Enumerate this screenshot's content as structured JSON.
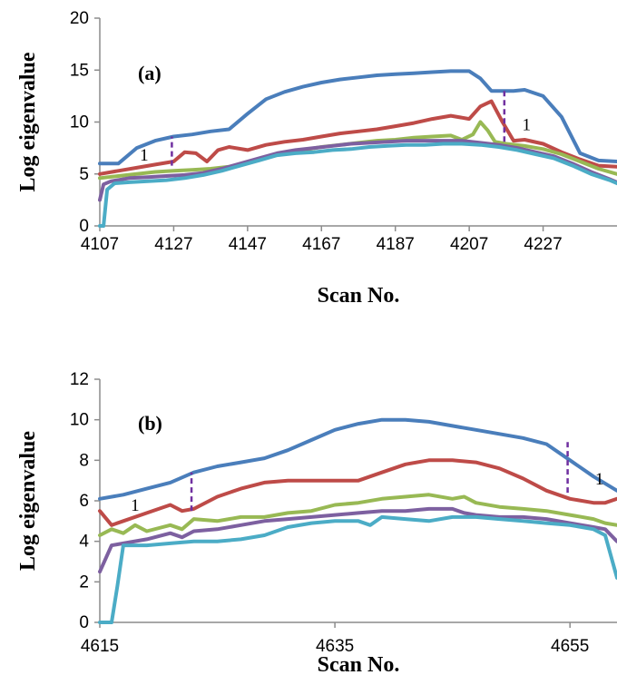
{
  "chart_data": [
    {
      "type": "line",
      "panel_label": "(a)",
      "xlabel": "Scan No.",
      "ylabel": "Log eigenvalue",
      "xlim": [
        4107,
        4247
      ],
      "ylim": [
        0,
        20
      ],
      "x_ticks": [
        4107,
        4127,
        4147,
        4167,
        4187,
        4207,
        4227
      ],
      "y_ticks": [
        0,
        5,
        10,
        15,
        20
      ],
      "grid": false,
      "series": [
        {
          "color": "#4a7ebb",
          "x": [
            4107,
            4112,
            4117,
            4122,
            4127,
            4132,
            4137,
            4142,
            4147,
            4152,
            4157,
            4162,
            4167,
            4172,
            4177,
            4182,
            4187,
            4192,
            4197,
            4202,
            4207,
            4210,
            4213,
            4216,
            4219,
            4222,
            4227,
            4232,
            4237,
            4242,
            4247
          ],
          "y": [
            6,
            6,
            7.5,
            8.2,
            8.6,
            8.8,
            9.1,
            9.3,
            10.8,
            12.2,
            12.9,
            13.4,
            13.8,
            14.1,
            14.3,
            14.5,
            14.6,
            14.7,
            14.8,
            14.9,
            14.9,
            14.2,
            13,
            13,
            13,
            13.1,
            12.5,
            10.5,
            7,
            6.3,
            6.2
          ]
        },
        {
          "color": "#be4b48",
          "x": [
            4107,
            4112,
            4117,
            4122,
            4127,
            4130,
            4133,
            4136,
            4139,
            4142,
            4147,
            4152,
            4157,
            4162,
            4167,
            4172,
            4177,
            4182,
            4187,
            4192,
            4197,
            4202,
            4207,
            4210,
            4213,
            4216,
            4219,
            4222,
            4227,
            4232,
            4237,
            4242,
            4247
          ],
          "y": [
            5,
            5.3,
            5.6,
            5.9,
            6.2,
            7.1,
            7,
            6.2,
            7.3,
            7.6,
            7.3,
            7.8,
            8.1,
            8.3,
            8.6,
            8.9,
            9.1,
            9.3,
            9.6,
            9.9,
            10.3,
            10.6,
            10.3,
            11.5,
            12,
            10,
            8.2,
            8.3,
            7.9,
            7.1,
            6.4,
            5.8,
            5.7
          ]
        },
        {
          "color": "#98b954",
          "x": [
            4107,
            4112,
            4117,
            4122,
            4127,
            4132,
            4137,
            4142,
            4147,
            4152,
            4157,
            4162,
            4167,
            4172,
            4177,
            4182,
            4187,
            4192,
            4197,
            4202,
            4205,
            4208,
            4210,
            4212,
            4214,
            4217,
            4222,
            4227,
            4232,
            4237,
            4242,
            4247
          ],
          "y": [
            4.6,
            4.8,
            5,
            5.2,
            5.3,
            5.4,
            5.5,
            5.7,
            6.1,
            6.6,
            7,
            7.3,
            7.6,
            7.8,
            8,
            8.2,
            8.3,
            8.5,
            8.6,
            8.7,
            8.3,
            8.8,
            10,
            9.2,
            8.1,
            7.9,
            7.7,
            7.4,
            6.9,
            6.2,
            5.5,
            5
          ]
        },
        {
          "color": "#7d60a0",
          "x": [
            4107,
            4108,
            4110,
            4115,
            4120,
            4125,
            4130,
            4135,
            4140,
            4145,
            4150,
            4155,
            4160,
            4165,
            4170,
            4175,
            4180,
            4185,
            4190,
            4195,
            4200,
            4205,
            4210,
            4215,
            4220,
            4225,
            4230,
            4235,
            4240,
            4245,
            4247
          ],
          "y": [
            2.5,
            4,
            4.3,
            4.6,
            4.7,
            4.8,
            4.9,
            5.1,
            5.5,
            6,
            6.5,
            7,
            7.3,
            7.5,
            7.7,
            7.9,
            8,
            8.1,
            8.2,
            8.2,
            8.2,
            8.2,
            8,
            7.8,
            7.5,
            7.1,
            6.7,
            6,
            5.2,
            4.5,
            4.2
          ]
        },
        {
          "color": "#4bacc6",
          "x": [
            4107,
            4108,
            4109,
            4111,
            4115,
            4120,
            4125,
            4130,
            4135,
            4140,
            4145,
            4150,
            4155,
            4160,
            4165,
            4170,
            4175,
            4180,
            4185,
            4190,
            4195,
            4200,
            4205,
            4210,
            4215,
            4220,
            4225,
            4230,
            4235,
            4240,
            4245,
            4247
          ],
          "y": [
            0,
            0,
            3.5,
            4.1,
            4.2,
            4.3,
            4.4,
            4.6,
            4.9,
            5.3,
            5.8,
            6.3,
            6.8,
            7,
            7.1,
            7.3,
            7.4,
            7.6,
            7.7,
            7.8,
            7.8,
            7.9,
            7.9,
            7.8,
            7.6,
            7.3,
            6.9,
            6.5,
            5.8,
            5,
            4.4,
            4.1
          ]
        }
      ],
      "annotations": [
        {
          "text": "1",
          "x": 4119,
          "y": 6.3
        },
        {
          "text": "1",
          "x": 4222.5,
          "y": 9.2
        }
      ],
      "markers": [
        {
          "x": 4126.5,
          "y_from": 5.8,
          "y_to": 8.6
        },
        {
          "x": 4216.5,
          "y_from": 8.1,
          "y_to": 13
        }
      ]
    },
    {
      "type": "line",
      "panel_label": "(b)",
      "xlabel": "Scan No.",
      "ylabel": "Log eigenvalue",
      "xlim": [
        4615,
        4659
      ],
      "ylim": [
        0,
        12
      ],
      "x_ticks": [
        4615,
        4635,
        4655
      ],
      "y_ticks": [
        0,
        2,
        4,
        6,
        8,
        10,
        12
      ],
      "grid": false,
      "series": [
        {
          "color": "#4a7ebb",
          "x": [
            4615,
            4617,
            4619,
            4621,
            4623,
            4625,
            4627,
            4629,
            4631,
            4633,
            4635,
            4637,
            4639,
            4641,
            4643,
            4645,
            4647,
            4649,
            4651,
            4653,
            4655,
            4657,
            4659
          ],
          "y": [
            6.1,
            6.3,
            6.6,
            6.9,
            7.4,
            7.7,
            7.9,
            8.1,
            8.5,
            9,
            9.5,
            9.8,
            10,
            10,
            9.9,
            9.7,
            9.5,
            9.3,
            9.1,
            8.8,
            8,
            7.2,
            6.5
          ]
        },
        {
          "color": "#be4b48",
          "x": [
            4615,
            4616,
            4617,
            4619,
            4621,
            4622,
            4623,
            4625,
            4627,
            4629,
            4631,
            4633,
            4635,
            4637,
            4639,
            4641,
            4643,
            4645,
            4647,
            4649,
            4651,
            4653,
            4655,
            4657,
            4658,
            4659
          ],
          "y": [
            5.5,
            4.8,
            5,
            5.4,
            5.8,
            5.5,
            5.6,
            6.2,
            6.6,
            6.9,
            7,
            7,
            7,
            7,
            7.4,
            7.8,
            8,
            8,
            7.9,
            7.6,
            7.1,
            6.5,
            6.1,
            5.9,
            5.9,
            6.1
          ]
        },
        {
          "color": "#98b954",
          "x": [
            4615,
            4616,
            4617,
            4618,
            4619,
            4621,
            4622,
            4623,
            4625,
            4627,
            4629,
            4631,
            4633,
            4635,
            4637,
            4639,
            4641,
            4643,
            4645,
            4646,
            4647,
            4649,
            4651,
            4653,
            4655,
            4657,
            4658,
            4659
          ],
          "y": [
            4.3,
            4.6,
            4.4,
            4.8,
            4.5,
            4.8,
            4.6,
            5.1,
            5,
            5.2,
            5.2,
            5.4,
            5.5,
            5.8,
            5.9,
            6.1,
            6.2,
            6.3,
            6.1,
            6.2,
            5.9,
            5.7,
            5.6,
            5.5,
            5.3,
            5.1,
            4.9,
            4.8
          ]
        },
        {
          "color": "#7d60a0",
          "x": [
            4615,
            4616,
            4617,
            4619,
            4621,
            4622,
            4623,
            4625,
            4627,
            4629,
            4631,
            4633,
            4635,
            4637,
            4639,
            4641,
            4643,
            4645,
            4646,
            4647,
            4649,
            4651,
            4653,
            4655,
            4657,
            4658,
            4659
          ],
          "y": [
            2.5,
            3.8,
            3.9,
            4.1,
            4.4,
            4.2,
            4.5,
            4.6,
            4.8,
            5,
            5.1,
            5.2,
            5.3,
            5.4,
            5.5,
            5.5,
            5.6,
            5.6,
            5.4,
            5.3,
            5.2,
            5.2,
            5.1,
            4.9,
            4.7,
            4.6,
            4
          ]
        },
        {
          "color": "#4bacc6",
          "x": [
            4615,
            4616,
            4616.5,
            4617,
            4619,
            4621,
            4623,
            4625,
            4627,
            4629,
            4631,
            4633,
            4635,
            4637,
            4638,
            4639,
            4641,
            4643,
            4645,
            4647,
            4649,
            4651,
            4653,
            4655,
            4657,
            4658,
            4659
          ],
          "y": [
            0,
            0,
            1.8,
            3.8,
            3.8,
            3.9,
            4,
            4,
            4.1,
            4.3,
            4.7,
            4.9,
            5,
            5,
            4.8,
            5.2,
            5.1,
            5,
            5.2,
            5.2,
            5.1,
            5,
            4.9,
            4.8,
            4.6,
            4.3,
            2.2
          ]
        }
      ],
      "annotations": [
        {
          "text": "1",
          "x": 4618,
          "y": 5.5
        },
        {
          "text": "1",
          "x": 4657.5,
          "y": 6.8
        }
      ],
      "markers": [
        {
          "x": 4622.8,
          "y_from": 5.5,
          "y_to": 7.4
        },
        {
          "x": 4654.8,
          "y_from": 6.4,
          "y_to": 8.9
        }
      ]
    }
  ]
}
